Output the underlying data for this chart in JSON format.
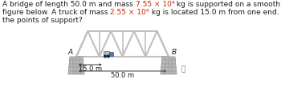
{
  "bridge_color": "#c0c0c0",
  "support_color": "#b8b8b8",
  "truck_body_color": "#8899aa",
  "truck_cab_color": "#4a7ab5",
  "text_color": "#1a1a1a",
  "red_text_color": "#cc2200",
  "background_color": "#ffffff",
  "label_A": "A",
  "label_B": "B",
  "dim_15": "15.0 m",
  "dim_50": "50.0 m",
  "font_size": 6.5,
  "lw_truss": 1.5
}
